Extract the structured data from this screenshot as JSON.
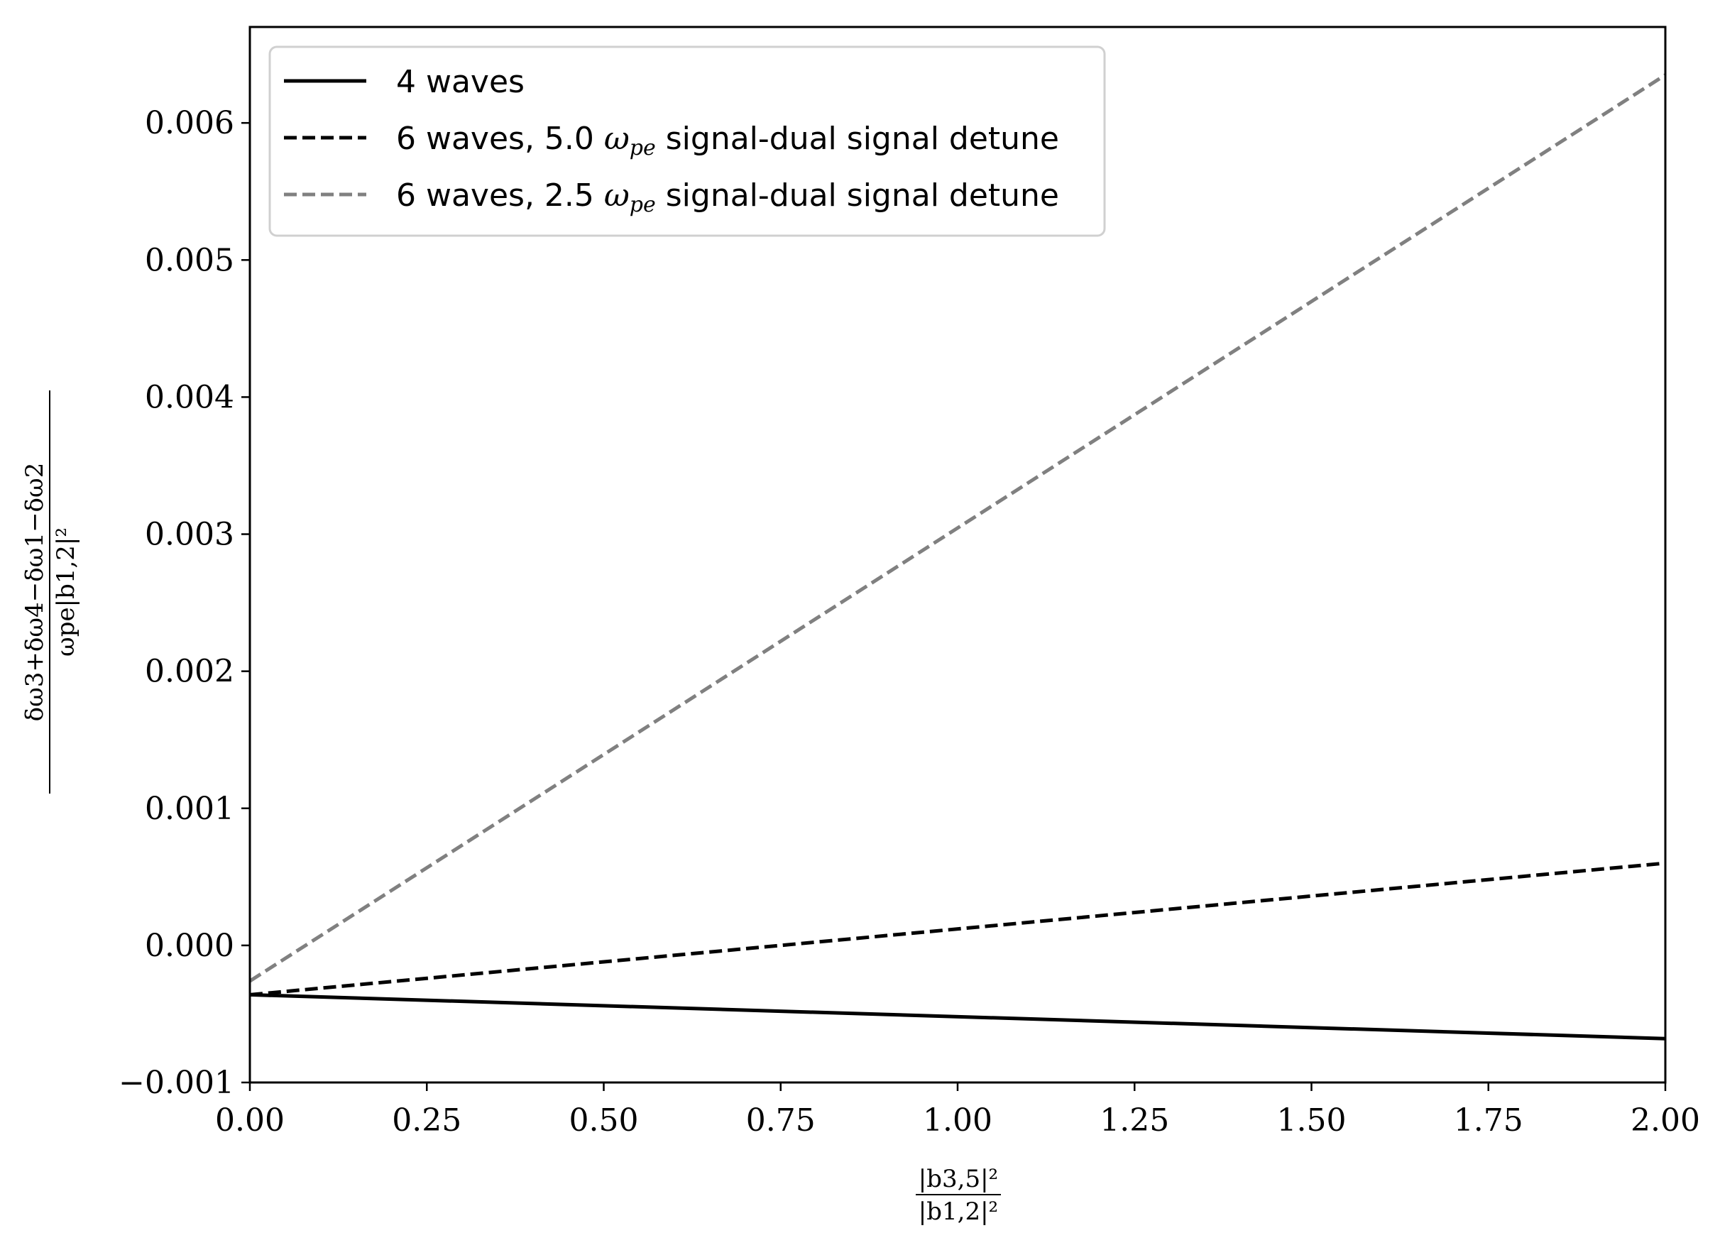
{
  "chart_data": {
    "type": "line",
    "title": "",
    "xlabel": {
      "numerator": "|b3,5|²",
      "denominator": "|b1,2|²"
    },
    "ylabel": {
      "numerator": "δω3+δω4−δω1−δω2",
      "denominator": "ωpe|b1,2|²"
    },
    "xlim": [
      0,
      2
    ],
    "ylim": [
      -0.001,
      0.0067
    ],
    "x_ticks": [
      0,
      0.25,
      0.5,
      0.75,
      1.0,
      1.25,
      1.5,
      1.75,
      2.0
    ],
    "x_tick_labels": [
      "0.00",
      "0.25",
      "0.50",
      "0.75",
      "1.00",
      "1.25",
      "1.50",
      "1.75",
      "2.00"
    ],
    "y_ticks": [
      -0.001,
      0,
      0.001,
      0.002,
      0.003,
      0.004,
      0.005,
      0.006
    ],
    "y_tick_labels": [
      "−0.001",
      "0.000",
      "0.001",
      "0.002",
      "0.003",
      "0.004",
      "0.005",
      "0.006"
    ],
    "grid": false,
    "legend_position": "top-left",
    "series": [
      {
        "name": "4 waves",
        "style": "solid",
        "color": "#000000",
        "x": [
          0,
          2
        ],
        "y": [
          -0.00036,
          -0.00068
        ]
      },
      {
        "name": "6 waves, 5.0 ωpe signal-dual signal detune",
        "legend_parts": [
          "6 waves, 5.0 ",
          "ω",
          "pe",
          " signal-dual signal detune"
        ],
        "style": "dashed",
        "color": "#000000",
        "x": [
          0,
          2
        ],
        "y": [
          -0.00036,
          0.0006
        ]
      },
      {
        "name": "6 waves, 2.5 ωpe signal-dual signal detune",
        "legend_parts": [
          "6 waves, 2.5 ",
          "ω",
          "pe",
          " signal-dual signal detune"
        ],
        "style": "dashed",
        "color": "#808080",
        "x": [
          0,
          2
        ],
        "y": [
          -0.00026,
          0.00635
        ]
      }
    ]
  }
}
